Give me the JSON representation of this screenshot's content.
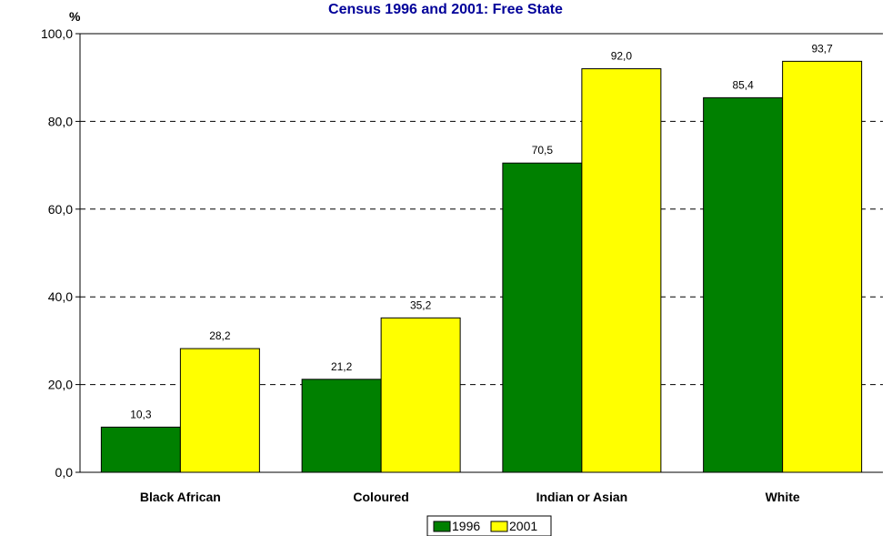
{
  "chart_data": {
    "type": "bar",
    "title": "Census 1996 and 2001: Free State",
    "ylabel": "%",
    "categories": [
      "Black African",
      "Coloured",
      "Indian or Asian",
      "White"
    ],
    "series": [
      {
        "name": "1996",
        "color": "#008000",
        "values": [
          10.3,
          21.2,
          70.5,
          85.4
        ],
        "labels": [
          "10,3",
          "21,2",
          "70,5",
          "85,4"
        ]
      },
      {
        "name": "2001",
        "color": "#ffff00",
        "values": [
          28.2,
          35.2,
          92.0,
          93.7
        ],
        "labels": [
          "28,2",
          "35,2",
          "92,0",
          "93,7"
        ]
      }
    ],
    "ylim": [
      0,
      100
    ],
    "yticks": [
      0,
      20,
      40,
      60,
      80,
      100
    ],
    "ytick_labels": [
      "0,0",
      "20,0",
      "40,0",
      "60,0",
      "80,0",
      "100,0"
    ],
    "grid": true,
    "legend_position": "bottom-center",
    "title_color": "#000099"
  }
}
